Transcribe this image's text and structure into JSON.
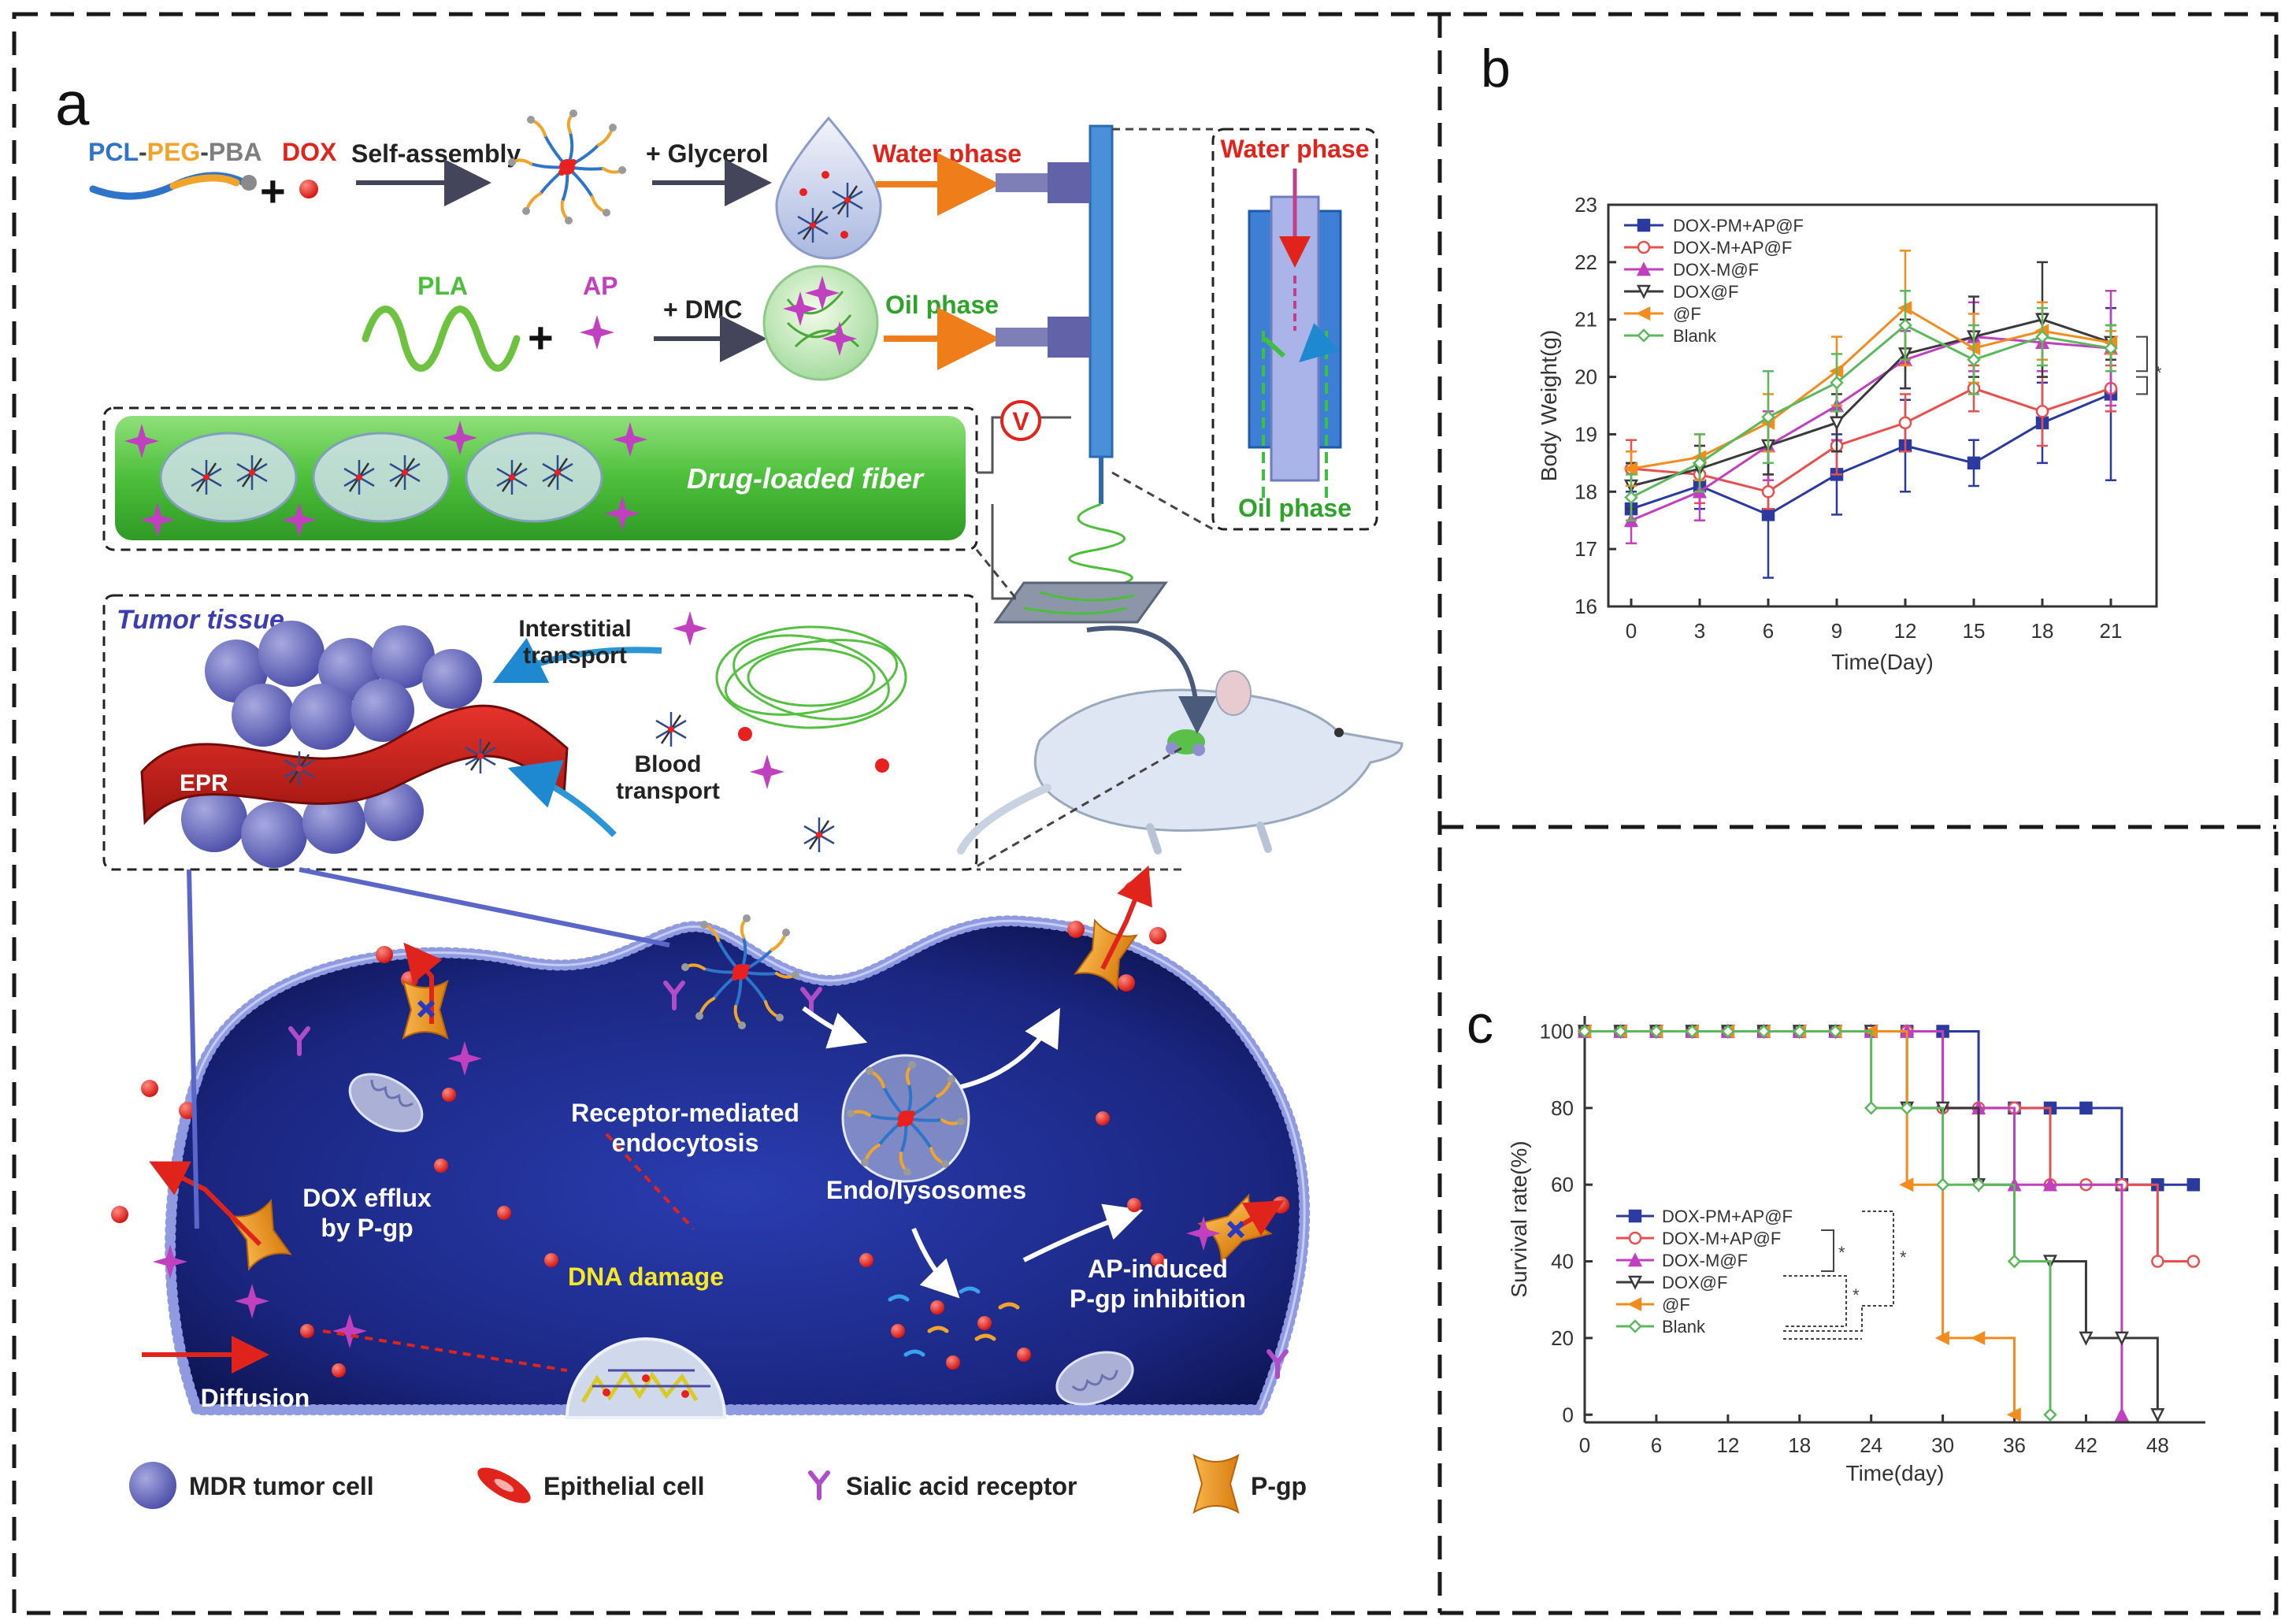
{
  "panel_a": {
    "label": "a",
    "row1": {
      "pcl": "PCL",
      "peg": "PEG",
      "pba": "PBA",
      "dash": "-",
      "dox": "DOX",
      "plus": "+",
      "self_assembly": "Self-assembly",
      "glycerol": "+ Glycerol",
      "water_phase": "Water phase"
    },
    "row2": {
      "pla": "PLA",
      "plus": "+",
      "ap": "AP",
      "dmc": "+ DMC",
      "oil_phase": "Oil phase"
    },
    "nozzle": {
      "water": "Water phase",
      "oil": "Oil phase"
    },
    "voltage": "V",
    "fiber": "Drug-loaded fiber",
    "tumor": {
      "title": "Tumor tissue",
      "interstitial": [
        "Interstitial",
        "transport"
      ],
      "blood": [
        "Blood",
        "transport"
      ],
      "epr": "EPR"
    },
    "cell": {
      "receptor": [
        "Receptor-mediated",
        "endocytosis"
      ],
      "endo": "Endo/lysosomes",
      "efflux": [
        "DOX efflux",
        "by P-gp"
      ],
      "dna": "DNA damage",
      "ap_inhibition": [
        "AP-induced",
        "P-gp inhibition"
      ],
      "diffusion": "Diffusion"
    },
    "legend": [
      "MDR tumor cell",
      "Epithelial cell",
      "Sialic acid receptor",
      "P-gp"
    ]
  },
  "panel_b": {
    "label": "b",
    "chart_data": {
      "type": "line",
      "xlabel": "Time(Day)",
      "ylabel": "Body Weight(g)",
      "xlim": [
        -1,
        23
      ],
      "ylim": [
        16,
        23
      ],
      "x_ticks": [
        0,
        3,
        6,
        9,
        12,
        15,
        18,
        21
      ],
      "y_ticks": [
        16,
        17,
        18,
        19,
        20,
        21,
        22,
        23
      ],
      "x": [
        0,
        3,
        6,
        9,
        12,
        15,
        18,
        21
      ],
      "legend_position": "top-left",
      "significance": [
        "*",
        "*"
      ],
      "series": [
        {
          "name": "DOX-PM+AP@F",
          "color": "#2b3a9e",
          "marker": "square-filled",
          "values": [
            17.7,
            18.1,
            17.6,
            18.3,
            18.8,
            18.5,
            19.2,
            19.7
          ],
          "errors": [
            0.3,
            0.4,
            1.1,
            0.7,
            0.8,
            0.4,
            0.7,
            1.5
          ]
        },
        {
          "name": "DOX-M+AP@F",
          "color": "#e8504f",
          "marker": "circle-open",
          "values": [
            18.4,
            18.3,
            18.0,
            18.8,
            19.2,
            19.8,
            19.4,
            19.8
          ],
          "errors": [
            0.5,
            0.5,
            0.3,
            0.5,
            0.5,
            0.4,
            0.6,
            0.4
          ]
        },
        {
          "name": "DOX-M@F",
          "color": "#c040c0",
          "marker": "triangle-filled",
          "values": [
            17.5,
            18.0,
            18.8,
            19.5,
            20.3,
            20.7,
            20.6,
            20.5
          ],
          "errors": [
            0.4,
            0.5,
            0.6,
            0.6,
            0.5,
            0.6,
            0.5,
            1.0
          ]
        },
        {
          "name": "DOX@F",
          "color": "#3a3a3a",
          "marker": "triangle-down-open",
          "values": [
            18.1,
            18.4,
            18.8,
            19.2,
            20.4,
            20.7,
            21.0,
            20.6
          ],
          "errors": [
            0.4,
            0.4,
            0.5,
            0.5,
            0.6,
            0.7,
            1.0,
            0.3
          ]
        },
        {
          "name": "@F",
          "color": "#f28c1f",
          "marker": "triangle-left-filled",
          "values": [
            18.4,
            18.6,
            19.2,
            20.1,
            21.2,
            20.5,
            20.8,
            20.6
          ],
          "errors": [
            0.3,
            0.4,
            0.5,
            0.6,
            1.0,
            0.6,
            0.5,
            0.2
          ]
        },
        {
          "name": "Blank",
          "color": "#5cb85c",
          "marker": "diamond-open",
          "values": [
            17.9,
            18.5,
            19.3,
            19.9,
            20.9,
            20.3,
            20.7,
            20.5
          ],
          "errors": [
            0.4,
            0.5,
            0.8,
            0.5,
            0.6,
            0.6,
            0.5,
            0.4
          ]
        }
      ]
    }
  },
  "panel_c": {
    "label": "c",
    "chart_data": {
      "type": "line",
      "step": true,
      "xlabel": "Time(day)",
      "ylabel": "Survival rate(%)",
      "xlim": [
        0,
        52
      ],
      "ylim": [
        -2,
        104
      ],
      "x_ticks": [
        0,
        6,
        12,
        18,
        24,
        30,
        36,
        42,
        48
      ],
      "y_ticks": [
        0,
        20,
        40,
        60,
        80,
        100
      ],
      "legend_position": "bottom-left",
      "significance": [
        "*",
        "*",
        "*"
      ],
      "series": [
        {
          "name": "DOX-PM+AP@F",
          "color": "#2b3a9e",
          "marker": "square-filled",
          "steps": [
            [
              0,
              100
            ],
            [
              33,
              80
            ],
            [
              45,
              60
            ],
            [
              51,
              60
            ]
          ],
          "markers": [
            [
              0,
              100
            ],
            [
              3,
              100
            ],
            [
              6,
              100
            ],
            [
              9,
              100
            ],
            [
              12,
              100
            ],
            [
              15,
              100
            ],
            [
              18,
              100
            ],
            [
              21,
              100
            ],
            [
              24,
              100
            ],
            [
              27,
              100
            ],
            [
              30,
              100
            ],
            [
              36,
              80
            ],
            [
              39,
              80
            ],
            [
              42,
              80
            ],
            [
              45,
              60
            ],
            [
              48,
              60
            ],
            [
              51,
              60
            ]
          ]
        },
        {
          "name": "DOX-M+AP@F",
          "color": "#e8504f",
          "marker": "circle-open",
          "steps": [
            [
              0,
              100
            ],
            [
              30,
              80
            ],
            [
              39,
              60
            ],
            [
              48,
              40
            ],
            [
              51,
              40
            ]
          ],
          "markers": [
            [
              0,
              100
            ],
            [
              3,
              100
            ],
            [
              6,
              100
            ],
            [
              9,
              100
            ],
            [
              12,
              100
            ],
            [
              15,
              100
            ],
            [
              18,
              100
            ],
            [
              21,
              100
            ],
            [
              24,
              100
            ],
            [
              27,
              100
            ],
            [
              30,
              80
            ],
            [
              33,
              80
            ],
            [
              36,
              80
            ],
            [
              39,
              60
            ],
            [
              42,
              60
            ],
            [
              45,
              60
            ],
            [
              48,
              40
            ],
            [
              51,
              40
            ]
          ]
        },
        {
          "name": "DOX-M@F",
          "color": "#c040c0",
          "marker": "triangle-filled",
          "steps": [
            [
              0,
              100
            ],
            [
              30,
              80
            ],
            [
              36,
              60
            ],
            [
              45,
              0
            ]
          ],
          "markers": [
            [
              0,
              100
            ],
            [
              3,
              100
            ],
            [
              6,
              100
            ],
            [
              9,
              100
            ],
            [
              12,
              100
            ],
            [
              15,
              100
            ],
            [
              18,
              100
            ],
            [
              21,
              100
            ],
            [
              24,
              100
            ],
            [
              27,
              100
            ],
            [
              33,
              80
            ],
            [
              36,
              60
            ],
            [
              39,
              60
            ],
            [
              45,
              0
            ]
          ]
        },
        {
          "name": "DOX@F",
          "color": "#3a3a3a",
          "marker": "triangle-down-open",
          "steps": [
            [
              0,
              100
            ],
            [
              27,
              80
            ],
            [
              33,
              60
            ],
            [
              36,
              40
            ],
            [
              42,
              20
            ],
            [
              48,
              0
            ]
          ],
          "markers": [
            [
              0,
              100
            ],
            [
              3,
              100
            ],
            [
              6,
              100
            ],
            [
              9,
              100
            ],
            [
              12,
              100
            ],
            [
              15,
              100
            ],
            [
              18,
              100
            ],
            [
              21,
              100
            ],
            [
              24,
              100
            ],
            [
              27,
              80
            ],
            [
              30,
              80
            ],
            [
              33,
              60
            ],
            [
              39,
              40
            ],
            [
              42,
              20
            ],
            [
              45,
              20
            ],
            [
              48,
              0
            ]
          ]
        },
        {
          "name": "@F",
          "color": "#f28c1f",
          "marker": "triangle-left-filled",
          "steps": [
            [
              0,
              100
            ],
            [
              27,
              60
            ],
            [
              30,
              20
            ],
            [
              36,
              0
            ]
          ],
          "markers": [
            [
              0,
              100
            ],
            [
              3,
              100
            ],
            [
              6,
              100
            ],
            [
              9,
              100
            ],
            [
              12,
              100
            ],
            [
              15,
              100
            ],
            [
              18,
              100
            ],
            [
              21,
              100
            ],
            [
              24,
              100
            ],
            [
              27,
              60
            ],
            [
              30,
              20
            ],
            [
              33,
              20
            ],
            [
              36,
              0
            ]
          ]
        },
        {
          "name": "Blank",
          "color": "#5cb85c",
          "marker": "diamond-open",
          "steps": [
            [
              0,
              100
            ],
            [
              24,
              80
            ],
            [
              30,
              60
            ],
            [
              36,
              40
            ],
            [
              39,
              0
            ]
          ],
          "markers": [
            [
              0,
              100
            ],
            [
              3,
              100
            ],
            [
              6,
              100
            ],
            [
              9,
              100
            ],
            [
              12,
              100
            ],
            [
              15,
              100
            ],
            [
              18,
              100
            ],
            [
              21,
              100
            ],
            [
              24,
              80
            ],
            [
              27,
              80
            ],
            [
              30,
              60
            ],
            [
              33,
              60
            ],
            [
              36,
              40
            ],
            [
              39,
              0
            ]
          ]
        }
      ]
    }
  }
}
